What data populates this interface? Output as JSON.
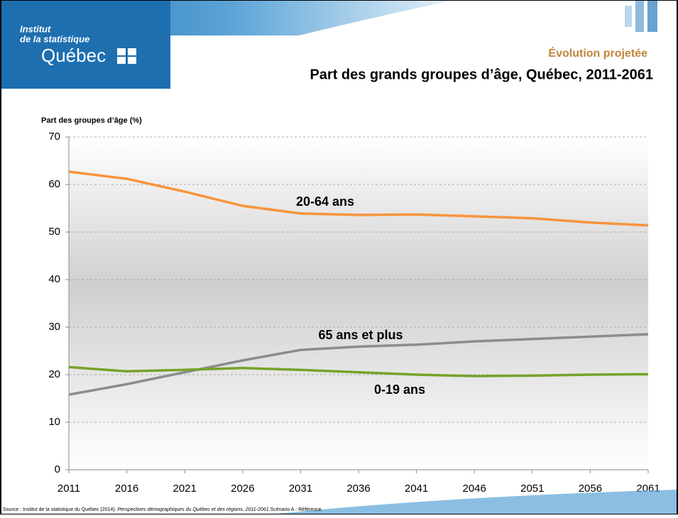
{
  "header": {
    "logo": [
      "Institut",
      "de la statistique",
      "Québec"
    ]
  },
  "chart_data": {
    "type": "line",
    "title": "Évolution projetée",
    "subtitle": "Part des grands groupes d’âge, Québec, 2011-2061",
    "y_label": "Part des groupes d’âge (%)",
    "x": [
      2011,
      2016,
      2021,
      2026,
      2031,
      2036,
      2041,
      2046,
      2051,
      2056,
      2061
    ],
    "series": [
      {
        "name": "20-64 ans",
        "color": "#f7943d",
        "values": [
          62.7,
          61.2,
          58.5,
          55.5,
          53.9,
          53.6,
          53.7,
          53.3,
          52.9,
          52.0,
          51.4
        ]
      },
      {
        "name": "65 ans et plus",
        "color": "#8c8c8c",
        "values": [
          15.8,
          18.0,
          20.5,
          23.0,
          25.2,
          25.9,
          26.3,
          27.0,
          27.5,
          28.0,
          28.5
        ]
      },
      {
        "name": "0-19 ans",
        "color": "#77a22a",
        "values": [
          21.6,
          20.7,
          21.0,
          21.4,
          21.0,
          20.5,
          20.0,
          19.7,
          19.8,
          20.0,
          20.1
        ]
      }
    ],
    "xlim": [
      2011,
      2061
    ],
    "xticks": [
      2011,
      2016,
      2021,
      2026,
      2031,
      2036,
      2041,
      2046,
      2051,
      2056,
      2061
    ],
    "ylim": [
      0,
      70
    ],
    "yticks": [
      0,
      10,
      20,
      30,
      40,
      50,
      60,
      70
    ],
    "grid": true,
    "source": [
      "Source : Institut de la statistique du Québec (2014). ",
      "Perspectives démographiques du Québec et des régions, 2011-2061.",
      "Scénario A - Référence."
    ]
  }
}
